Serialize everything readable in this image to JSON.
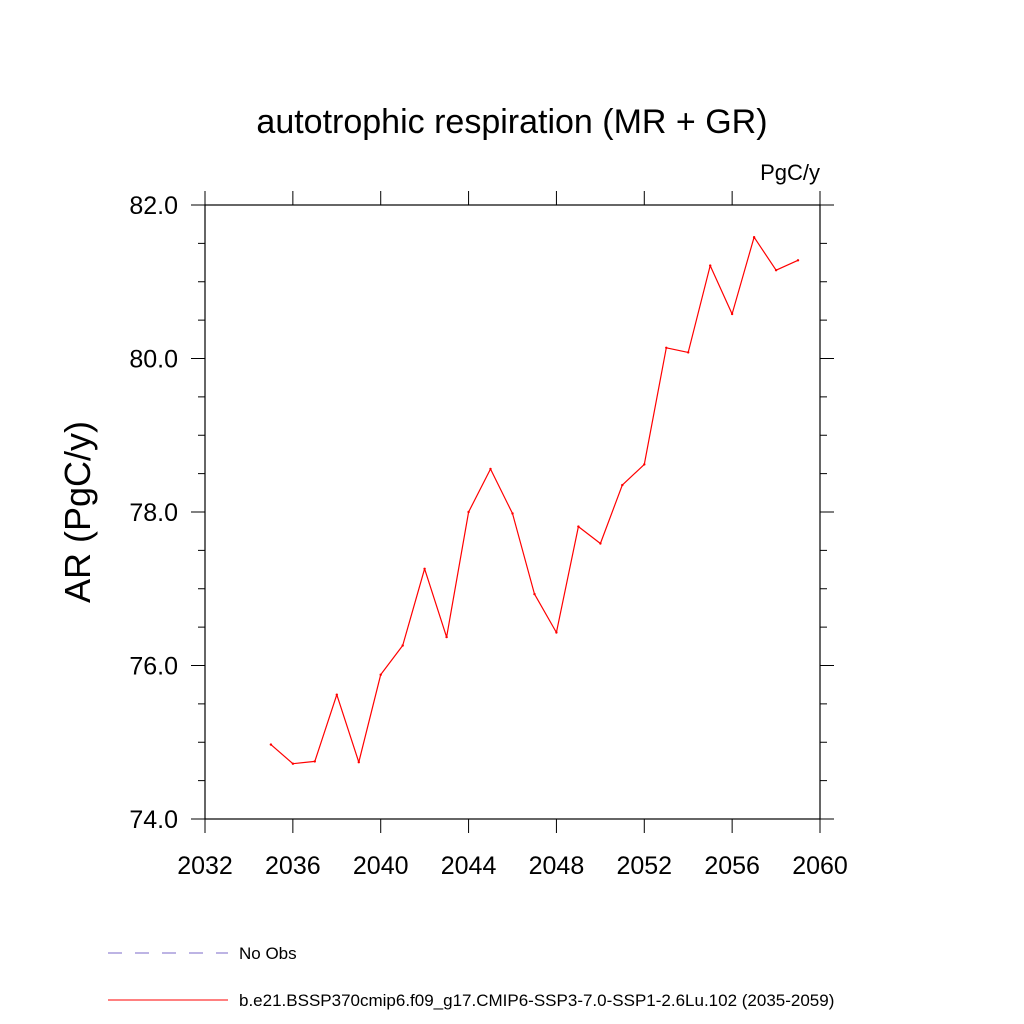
{
  "chart_data": {
    "type": "line",
    "title": "autotrophic respiration (MR + GR)",
    "units": "PgC/y",
    "ylabel": "AR  (PgC/y)",
    "xlabel": "",
    "xlim": [
      2032,
      2060
    ],
    "ylim": [
      74,
      82
    ],
    "x_ticks": [
      2032,
      2036,
      2040,
      2044,
      2048,
      2052,
      2056,
      2060
    ],
    "x_tick_labels": [
      "2032",
      "2036",
      "2040",
      "2044",
      "2048",
      "2052",
      "2056",
      "2060"
    ],
    "y_ticks": [
      74,
      76,
      78,
      80,
      82
    ],
    "y_tick_labels": [
      "74.0",
      "76.0",
      "78.0",
      "80.0",
      "82.0"
    ],
    "grid": false,
    "legend_position": "bottom",
    "series": [
      {
        "name": "b.e21.BSSP370cmip6.f09_g17.CMIP6-SSP3-7.0-SSP1-2.6Lu.102 (2035-2059)",
        "color": "#ff0000",
        "style": "solid",
        "x": [
          2035,
          2036,
          2037,
          2038,
          2039,
          2040,
          2041,
          2042,
          2043,
          2044,
          2045,
          2046,
          2047,
          2048,
          2049,
          2050,
          2051,
          2052,
          2053,
          2054,
          2055,
          2056,
          2057,
          2058,
          2059
        ],
        "y": [
          74.97,
          74.72,
          74.75,
          75.62,
          74.74,
          75.88,
          76.26,
          77.26,
          76.37,
          78.0,
          78.56,
          77.98,
          76.93,
          76.43,
          77.81,
          77.59,
          78.35,
          78.62,
          80.14,
          80.08,
          81.21,
          80.58,
          81.58,
          81.15,
          81.28
        ]
      }
    ],
    "legend": [
      {
        "label": "No Obs",
        "color": "#7b68c8",
        "style": "dashed"
      },
      {
        "label": "b.e21.BSSP370cmip6.f09_g17.CMIP6-SSP3-7.0-SSP1-2.6Lu.102 (2035-2059)",
        "color": "#ff0000",
        "style": "solid"
      }
    ]
  }
}
